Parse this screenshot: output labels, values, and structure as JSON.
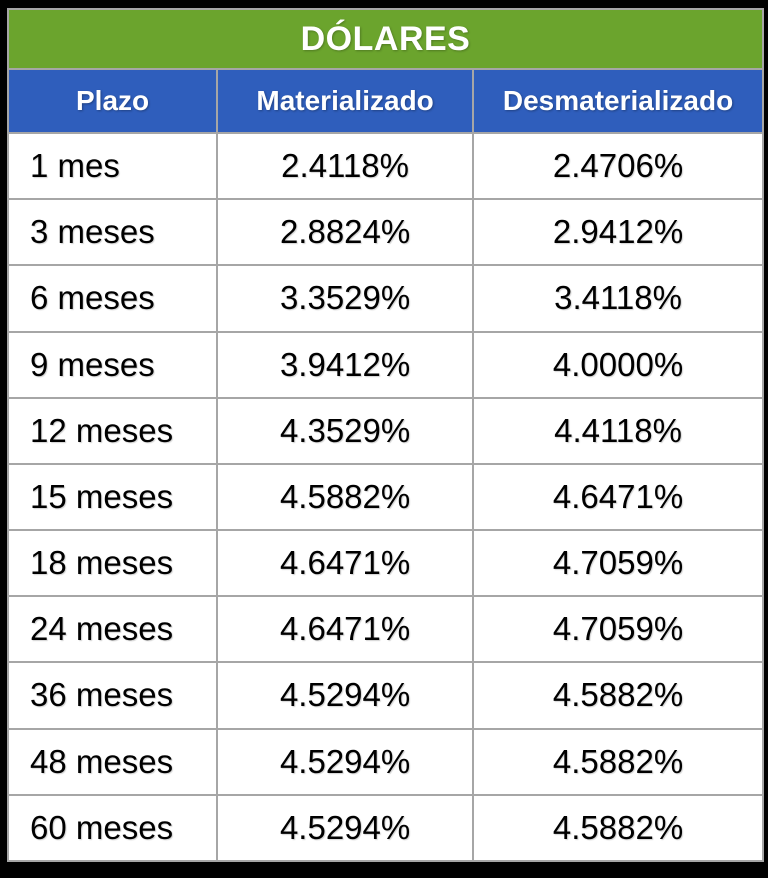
{
  "table": {
    "title": "DÓLARES",
    "columns": [
      "Plazo",
      "Materializado",
      "Desmaterializado"
    ],
    "rows": [
      [
        "1 mes",
        "2.4118%",
        "2.4706%"
      ],
      [
        "3 meses",
        "2.8824%",
        "2.9412%"
      ],
      [
        "6 meses",
        "3.3529%",
        "3.4118%"
      ],
      [
        "9 meses",
        "3.9412%",
        "4.0000%"
      ],
      [
        "12 meses",
        "4.3529%",
        "4.4118%"
      ],
      [
        "15 meses",
        "4.5882%",
        "4.6471%"
      ],
      [
        "18 meses",
        "4.6471%",
        "4.7059%"
      ],
      [
        "24 meses",
        "4.6471%",
        "4.7059%"
      ],
      [
        "36 meses",
        "4.5294%",
        "4.5882%"
      ],
      [
        "48 meses",
        "4.5294%",
        "4.5882%"
      ],
      [
        "60 meses",
        "4.5294%",
        "4.5882%"
      ]
    ]
  },
  "colors": {
    "title_bg": "#6ba42d",
    "header_bg": "#2f5ebc",
    "grid_line": "#a6a6a6",
    "outer_frame": "#000000",
    "cell_bg": "#ffffff",
    "header_text": "#ffffff",
    "cell_text": "#000000"
  },
  "chart_data": {
    "type": "table",
    "title": "DÓLARES",
    "columns": [
      "Plazo",
      "Materializado",
      "Desmaterializado"
    ],
    "rows": [
      [
        "1 mes",
        "2.4118%",
        "2.4706%"
      ],
      [
        "3 meses",
        "2.8824%",
        "2.9412%"
      ],
      [
        "6 meses",
        "3.3529%",
        "3.4118%"
      ],
      [
        "9 meses",
        "3.9412%",
        "4.0000%"
      ],
      [
        "12 meses",
        "4.3529%",
        "4.4118%"
      ],
      [
        "15 meses",
        "4.5882%",
        "4.6471%"
      ],
      [
        "18 meses",
        "4.6471%",
        "4.7059%"
      ],
      [
        "24 meses",
        "4.6471%",
        "4.7059%"
      ],
      [
        "36 meses",
        "4.5294%",
        "4.5882%"
      ],
      [
        "48 meses",
        "4.5294%",
        "4.5882%"
      ],
      [
        "60 meses",
        "4.5294%",
        "4.5882%"
      ]
    ],
    "notes": {
      "unit": "interest rate percent",
      "materializado_values": [
        2.4118,
        2.8824,
        3.3529,
        3.9412,
        4.3529,
        4.5882,
        4.6471,
        4.6471,
        4.5294,
        4.5294,
        4.5294
      ],
      "desmaterializado_values": [
        2.4706,
        2.9412,
        3.4118,
        4.0,
        4.4118,
        4.6471,
        4.7059,
        4.7059,
        4.5882,
        4.5882,
        4.5882
      ]
    }
  }
}
